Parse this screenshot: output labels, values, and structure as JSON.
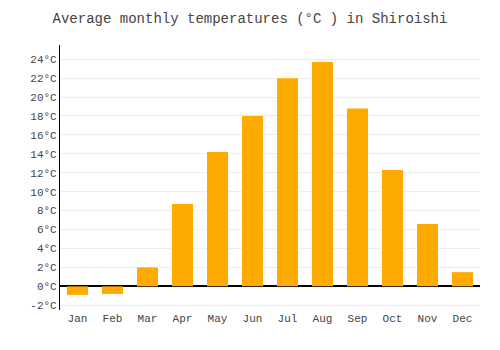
{
  "chart_data": {
    "type": "bar",
    "title": "Average monthly temperatures (°C ) in Shiroishi",
    "categories": [
      "Jan",
      "Feb",
      "Mar",
      "Apr",
      "May",
      "Jun",
      "Jul",
      "Aug",
      "Sep",
      "Oct",
      "Nov",
      "Dec"
    ],
    "values": [
      -0.9,
      -0.8,
      2.0,
      8.7,
      14.2,
      18.0,
      22.0,
      23.7,
      18.8,
      12.3,
      6.6,
      1.5
    ],
    "color": "#FFAA00",
    "ylim": [
      -2.5,
      25.5
    ],
    "yticks": [
      {
        "value": -2,
        "label": "-2°C"
      },
      {
        "value": 0,
        "label": "0°C"
      },
      {
        "value": 2,
        "label": "2°C"
      },
      {
        "value": 4,
        "label": "4°C"
      },
      {
        "value": 6,
        "label": "6°C"
      },
      {
        "value": 8,
        "label": "8°C"
      },
      {
        "value": 10,
        "label": "10°C"
      },
      {
        "value": 12,
        "label": "12°C"
      },
      {
        "value": 14,
        "label": "14°C"
      },
      {
        "value": 16,
        "label": "16°C"
      },
      {
        "value": 18,
        "label": "18°C"
      },
      {
        "value": 20,
        "label": "20°C"
      },
      {
        "value": 22,
        "label": "22°C"
      },
      {
        "value": 24,
        "label": "24°C"
      }
    ],
    "grid": true
  }
}
